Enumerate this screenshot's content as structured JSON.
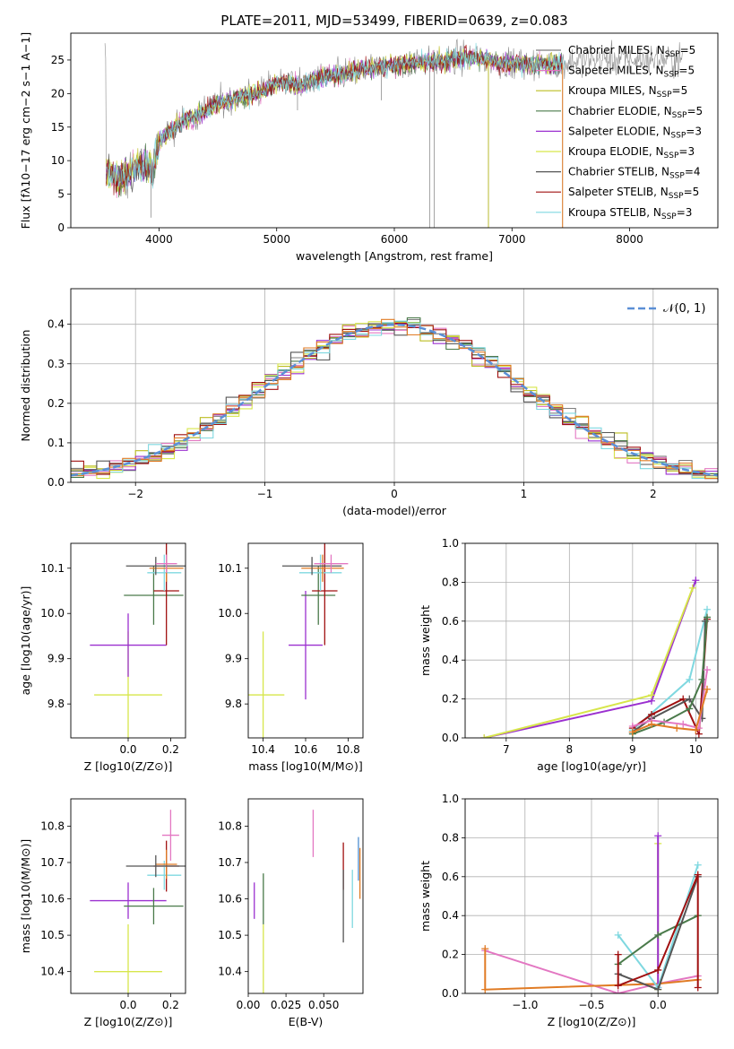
{
  "figure": {
    "title": "PLATE=2011, MJD=53499, FIBERID=0639, z=0.083",
    "colors": {
      "chabrier_miles": "#7f7f7f",
      "salpeter_miles": "#e377c2",
      "kroupa_miles": "#bcbd22",
      "chabrier_elodie": "#4a7a4a",
      "salpeter_elodie": "#9b30d0",
      "kroupa_elodie": "#d7e64b",
      "chabrier_stelib": "#555555",
      "salpeter_stelib": "#a01010",
      "kroupa_stelib": "#7fd8e0",
      "normal": "#5b8fd6",
      "extra_orange": "#e07b24",
      "extra_blue": "#4f8fd0",
      "grid": "#b0b0b0"
    }
  },
  "chart_data": [
    {
      "id": "spectrum",
      "type": "line",
      "title": "PLATE=2011, MJD=53499, FIBERID=0639, z=0.083",
      "xlabel": "wavelength [Angstrom, rest frame]",
      "ylabel": "Flux [fλ10−17 erg cm−2 s−1 A−1]",
      "xlim": [
        3250,
        8750
      ],
      "ylim": [
        0,
        29
      ],
      "xticks": [
        4000,
        5000,
        6000,
        7000,
        8000
      ],
      "yticks": [
        0,
        5,
        10,
        15,
        20,
        25
      ],
      "grid": false,
      "legend_position": "right",
      "series": [
        {
          "name": "Chabrier MILES, NSSP=5",
          "name_main": "Chabrier MILES, N",
          "name_sub": "SSP",
          "name_tail": "=5",
          "color_key": "chabrier_miles"
        },
        {
          "name": "Salpeter MILES, NSSP=5",
          "name_main": "Salpeter MILES, N",
          "name_sub": "SSP",
          "name_tail": "=5",
          "color_key": "salpeter_miles"
        },
        {
          "name": "Kroupa MILES, NSSP=5",
          "name_main": "Kroupa MILES, N",
          "name_sub": "SSP",
          "name_tail": "=5",
          "color_key": "kroupa_miles"
        },
        {
          "name": "Chabrier ELODIE, NSSP=5",
          "name_main": "Chabrier ELODIE, N",
          "name_sub": "SSP",
          "name_tail": "=5",
          "color_key": "chabrier_elodie"
        },
        {
          "name": "Salpeter ELODIE, NSSP=3",
          "name_main": "Salpeter ELODIE, N",
          "name_sub": "SSP",
          "name_tail": "=3",
          "color_key": "salpeter_elodie"
        },
        {
          "name": "Kroupa ELODIE, NSSP=3",
          "name_main": "Kroupa ELODIE, N",
          "name_sub": "SSP",
          "name_tail": "=3",
          "color_key": "kroupa_elodie"
        },
        {
          "name": "Chabrier STELIB, NSSP=4",
          "name_main": "Chabrier STELIB, N",
          "name_sub": "SSP",
          "name_tail": "=4",
          "color_key": "chabrier_stelib"
        },
        {
          "name": "Salpeter STELIB, NSSP=5",
          "name_main": "Salpeter STELIB, N",
          "name_sub": "SSP",
          "name_tail": "=5",
          "color_key": "salpeter_stelib"
        },
        {
          "name": "Kroupa STELIB, NSSP=3",
          "name_main": "Kroupa STELIB, N",
          "name_sub": "SSP",
          "name_tail": "=3",
          "color_key": "kroupa_stelib"
        }
      ],
      "continuum": {
        "x": [
          3550,
          3700,
          3800,
          3900,
          3950,
          4000,
          4100,
          4200,
          4300,
          4400,
          4500,
          4600,
          4700,
          4800,
          4900,
          5000,
          5100,
          5200,
          5300,
          5400,
          5500,
          5600,
          5700,
          5800,
          5900,
          6000,
          6100,
          6200,
          6300,
          6400,
          6500,
          6600,
          6700,
          6800,
          6900,
          7000,
          7100,
          7200,
          7300,
          7400,
          7600,
          7800,
          8000,
          8200,
          8400
        ],
        "y": [
          8.0,
          7.5,
          9.0,
          9.5,
          8.5,
          13.0,
          14.5,
          16.0,
          16.5,
          17.5,
          18.5,
          19.0,
          19.5,
          20.0,
          20.5,
          21.5,
          21.8,
          21.0,
          22.0,
          22.5,
          22.8,
          23.0,
          23.5,
          23.8,
          24.0,
          24.3,
          24.5,
          24.6,
          24.8,
          24.8,
          25.0,
          25.5,
          25.3,
          25.0,
          24.6,
          24.5,
          24.5,
          24.4,
          24.3,
          24.5,
          25.0,
          25.1,
          25.0,
          25.1,
          25.0
        ]
      },
      "dips": [
        {
          "x": 3933,
          "y": 1.5
        },
        {
          "x": 5177,
          "y": 17.5
        },
        {
          "x": 5890,
          "y": 19.0
        },
        {
          "x": 6300,
          "y": 0
        },
        {
          "x": 6340,
          "y": 0
        },
        {
          "x": 6800,
          "y": 0
        },
        {
          "x": 7430,
          "y": 0
        }
      ]
    },
    {
      "id": "residuals",
      "type": "step",
      "xlabel": "(data-model)/error",
      "ylabel": "Normed distribution",
      "xlim": [
        -2.5,
        2.5
      ],
      "ylim": [
        0,
        0.49
      ],
      "xticks": [
        -2,
        -1,
        0,
        1,
        2
      ],
      "xticklabels": [
        "−2",
        "−1",
        "0",
        "1",
        "2"
      ],
      "yticks": [
        0.0,
        0.1,
        0.2,
        0.3,
        0.4
      ],
      "yticklabels": [
        "0.0",
        "0.1",
        "0.2",
        "0.3",
        "0.4"
      ],
      "grid": true,
      "legend_position": "top-right",
      "normal_label": "𝒩(0, 1)",
      "bin_width": 0.1,
      "hist_colors": [
        "chabrier_miles",
        "salpeter_miles",
        "kroupa_miles",
        "chabrier_elodie",
        "salpeter_elodie",
        "kroupa_elodie",
        "chabrier_stelib",
        "salpeter_stelib",
        "kroupa_stelib",
        "extra_orange"
      ]
    },
    {
      "id": "age_vs_Z",
      "type": "errorbar",
      "xlabel": "Z [log10(Z/Z⊙)]",
      "ylabel": "age [log10(age/yr)]",
      "xlim": [
        -0.27,
        0.27
      ],
      "ylim": [
        9.725,
        10.155
      ],
      "xticks": [
        0.0,
        0.2
      ],
      "xticklabels": [
        "0.0",
        "0.2"
      ],
      "yticks": [
        9.8,
        9.9,
        10.0,
        10.1
      ],
      "yticklabels": [
        "9.8",
        "9.9",
        "10.0",
        "10.1"
      ],
      "grid": false,
      "points": [
        {
          "x": 0.0,
          "y": 9.82,
          "xerr": 0.16,
          "yerr": 0.14,
          "color_key": "kroupa_elodie"
        },
        {
          "x": 0.0,
          "y": 9.93,
          "xerr": 0.18,
          "yerr": 0.07,
          "color_key": "salpeter_elodie"
        },
        {
          "x": 0.12,
          "y": 10.04,
          "xerr": 0.14,
          "yerr": 0.065,
          "color_key": "chabrier_elodie"
        },
        {
          "x": 0.18,
          "y": 10.05,
          "xerr": 0.06,
          "yerr": 0.12,
          "color_key": "salpeter_stelib"
        },
        {
          "x": 0.17,
          "y": 10.09,
          "xerr": 0.08,
          "yerr": 0.04,
          "color_key": "kroupa_stelib"
        },
        {
          "x": 0.18,
          "y": 10.1,
          "xerr": 0.08,
          "yerr": 0.03,
          "color_key": "extra_orange"
        },
        {
          "x": 0.13,
          "y": 10.105,
          "xerr": 0.14,
          "yerr": 0.02,
          "color_key": "chabrier_stelib"
        },
        {
          "x": 0.18,
          "y": 10.11,
          "xerr": 0.05,
          "yerr": 0.02,
          "color_key": "salpeter_miles"
        }
      ]
    },
    {
      "id": "age_vs_mass",
      "type": "errorbar",
      "xlabel": "mass [log10(M/M⊙)]",
      "ylabel": "",
      "xlim": [
        10.33,
        10.87
      ],
      "ylim": [
        9.725,
        10.155
      ],
      "xticks": [
        10.4,
        10.6,
        10.8
      ],
      "xticklabels": [
        "10.4",
        "10.6",
        "10.8"
      ],
      "yticks": [
        9.8,
        9.9,
        10.0,
        10.1
      ],
      "yticklabels": [
        "9.8",
        "9.9",
        "10.0",
        "10.1"
      ],
      "grid": false,
      "points": [
        {
          "x": 10.4,
          "y": 9.82,
          "xerr": 0.1,
          "yerr": 0.14,
          "color_key": "kroupa_elodie"
        },
        {
          "x": 10.6,
          "y": 9.93,
          "xerr": 0.08,
          "yerr": 0.12,
          "color_key": "salpeter_elodie"
        },
        {
          "x": 10.66,
          "y": 10.04,
          "xerr": 0.08,
          "yerr": 0.065,
          "color_key": "chabrier_elodie"
        },
        {
          "x": 10.69,
          "y": 10.05,
          "xerr": 0.06,
          "yerr": 0.12,
          "color_key": "salpeter_stelib"
        },
        {
          "x": 10.67,
          "y": 10.09,
          "xerr": 0.1,
          "yerr": 0.04,
          "color_key": "kroupa_stelib"
        },
        {
          "x": 10.68,
          "y": 10.1,
          "xerr": 0.1,
          "yerr": 0.03,
          "color_key": "extra_orange"
        },
        {
          "x": 10.63,
          "y": 10.105,
          "xerr": 0.14,
          "yerr": 0.02,
          "color_key": "chabrier_stelib"
        },
        {
          "x": 10.72,
          "y": 10.11,
          "xerr": 0.08,
          "yerr": 0.02,
          "color_key": "salpeter_miles"
        }
      ]
    },
    {
      "id": "weight_vs_age",
      "type": "line",
      "xlabel": "age [log10(age/yr)]",
      "ylabel": "mass weight",
      "xlim": [
        6.35,
        10.35
      ],
      "ylim": [
        0,
        1.0
      ],
      "xticks": [
        7,
        8,
        9,
        10
      ],
      "xticklabels": [
        "7",
        "8",
        "9",
        "10"
      ],
      "yticks": [
        0.0,
        0.2,
        0.4,
        0.6,
        0.8,
        1.0
      ],
      "yticklabels": [
        "0.0",
        "0.2",
        "0.4",
        "0.6",
        "0.8",
        "1.0"
      ],
      "grid": true,
      "series": [
        {
          "color_key": "salpeter_elodie",
          "x": [
            6.65,
            9.3,
            10.0
          ],
          "y": [
            0.0,
            0.19,
            0.81
          ]
        },
        {
          "color_key": "kroupa_elodie",
          "x": [
            6.65,
            9.3,
            9.95
          ],
          "y": [
            0.0,
            0.22,
            0.77
          ]
        },
        {
          "color_key": "kroupa_stelib",
          "x": [
            9.0,
            9.9,
            10.18
          ],
          "y": [
            0.04,
            0.3,
            0.66
          ]
        },
        {
          "color_key": "salpeter_stelib",
          "x": [
            9.0,
            9.3,
            9.8,
            10.05,
            10.18
          ],
          "y": [
            0.05,
            0.12,
            0.2,
            0.02,
            0.61
          ]
        },
        {
          "color_key": "chabrier_stelib",
          "x": [
            9.0,
            9.3,
            9.9,
            10.1,
            10.15
          ],
          "y": [
            0.03,
            0.1,
            0.2,
            0.1,
            0.6
          ]
        },
        {
          "color_key": "chabrier_elodie",
          "x": [
            9.0,
            9.5,
            9.9,
            10.1,
            10.18
          ],
          "y": [
            0.02,
            0.08,
            0.15,
            0.3,
            0.62
          ]
        },
        {
          "color_key": "salpeter_miles",
          "x": [
            9.0,
            9.3,
            9.8,
            10.05,
            10.18
          ],
          "y": [
            0.06,
            0.09,
            0.07,
            0.05,
            0.35
          ]
        },
        {
          "color_key": "extra_orange",
          "x": [
            9.0,
            9.3,
            9.7,
            10.0,
            10.18
          ],
          "y": [
            0.03,
            0.07,
            0.05,
            0.04,
            0.25
          ]
        }
      ]
    },
    {
      "id": "mass_vs_Z",
      "type": "errorbar",
      "xlabel": "Z [log10(Z/Z⊙)]",
      "ylabel": "mass [log10(M/M⊙)]",
      "xlim": [
        -0.27,
        0.27
      ],
      "ylim": [
        10.34,
        10.875
      ],
      "xticks": [
        0.0,
        0.2
      ],
      "xticklabels": [
        "0.0",
        "0.2"
      ],
      "yticks": [
        10.4,
        10.5,
        10.6,
        10.7,
        10.8
      ],
      "yticklabels": [
        "10.4",
        "10.5",
        "10.6",
        "10.7",
        "10.8"
      ],
      "grid": false,
      "points": [
        {
          "x": 0.0,
          "y": 10.4,
          "xerr": 0.16,
          "yerr": 0.13,
          "color_key": "kroupa_elodie"
        },
        {
          "x": 0.0,
          "y": 10.595,
          "xerr": 0.18,
          "yerr": 0.05,
          "color_key": "salpeter_elodie"
        },
        {
          "x": 0.12,
          "y": 10.58,
          "xerr": 0.14,
          "yerr": 0.05,
          "color_key": "chabrier_elodie"
        },
        {
          "x": 0.18,
          "y": 10.69,
          "xerr": 0.06,
          "yerr": 0.07,
          "color_key": "salpeter_stelib"
        },
        {
          "x": 0.17,
          "y": 10.665,
          "xerr": 0.08,
          "yerr": 0.04,
          "color_key": "kroupa_stelib"
        },
        {
          "x": 0.18,
          "y": 10.695,
          "xerr": 0.05,
          "yerr": 0.04,
          "color_key": "extra_orange"
        },
        {
          "x": 0.13,
          "y": 10.69,
          "xerr": 0.14,
          "yerr": 0.03,
          "color_key": "chabrier_stelib"
        },
        {
          "x": 0.2,
          "y": 10.775,
          "xerr": 0.04,
          "yerr": 0.07,
          "color_key": "salpeter_miles"
        }
      ]
    },
    {
      "id": "mass_vs_ebv",
      "type": "errorbar",
      "xlabel": "E(B-V)",
      "ylabel": "",
      "xlim": [
        0.0,
        0.076
      ],
      "ylim": [
        10.34,
        10.875
      ],
      "xticks": [
        0.0,
        0.025,
        0.05
      ],
      "xticklabels": [
        "0.00",
        "0.025",
        "0.050"
      ],
      "yticks": [
        10.4,
        10.5,
        10.6,
        10.7,
        10.8
      ],
      "yticklabels": [
        "10.4",
        "10.5",
        "10.6",
        "10.7",
        "10.8"
      ],
      "grid": false,
      "points": [
        {
          "x": 0.01,
          "y": 10.4,
          "xerr": 0.0,
          "yerr": 0.13,
          "color_key": "kroupa_elodie"
        },
        {
          "x": 0.004,
          "y": 10.595,
          "xerr": 0.0,
          "yerr": 0.05,
          "color_key": "salpeter_elodie"
        },
        {
          "x": 0.01,
          "y": 10.6,
          "xerr": 0.0,
          "yerr": 0.07,
          "color_key": "chabrier_elodie"
        },
        {
          "x": 0.063,
          "y": 10.69,
          "xerr": 0.0,
          "yerr": 0.065,
          "color_key": "salpeter_stelib"
        },
        {
          "x": 0.069,
          "y": 10.6,
          "xerr": 0.0,
          "yerr": 0.08,
          "color_key": "kroupa_stelib"
        },
        {
          "x": 0.074,
          "y": 10.67,
          "xerr": 0.0,
          "yerr": 0.07,
          "color_key": "extra_orange"
        },
        {
          "x": 0.063,
          "y": 10.58,
          "xerr": 0.0,
          "yerr": 0.1,
          "color_key": "chabrier_stelib"
        },
        {
          "x": 0.043,
          "y": 10.78,
          "xerr": 0.0,
          "yerr": 0.065,
          "color_key": "salpeter_miles"
        },
        {
          "x": 0.073,
          "y": 10.71,
          "xerr": 0.0,
          "yerr": 0.06,
          "color_key": "extra_blue"
        }
      ]
    },
    {
      "id": "weight_vs_Z",
      "type": "line",
      "xlabel": "Z [log10(Z/Z⊙)]",
      "ylabel": "mass weight",
      "xlim": [
        -1.45,
        0.45
      ],
      "ylim": [
        0,
        1.0
      ],
      "xticks": [
        -1.0,
        -0.5,
        0.0
      ],
      "xticklabels": [
        "−1.0",
        "−0.5",
        "0.0"
      ],
      "yticks": [
        0.0,
        0.2,
        0.4,
        0.6,
        0.8,
        1.0
      ],
      "yticklabels": [
        "0.0",
        "0.2",
        "0.4",
        "0.6",
        "0.8",
        "1.0"
      ],
      "grid": true,
      "series": [
        {
          "color_key": "salpeter_miles",
          "x": [
            -1.3,
            -0.3,
            0.0,
            0.3
          ],
          "y": [
            0.22,
            0.0,
            0.05,
            0.09
          ]
        },
        {
          "color_key": "extra_orange",
          "x": [
            -1.3,
            -1.3,
            0.0,
            0.3
          ],
          "y": [
            0.23,
            0.02,
            0.05,
            0.07
          ]
        },
        {
          "color_key": "kroupa_elodie",
          "x": [
            0.0,
            0.0
          ],
          "y": [
            0.02,
            0.77
          ]
        },
        {
          "color_key": "salpeter_elodie",
          "x": [
            0.0,
            0.0
          ],
          "y": [
            0.03,
            0.81
          ]
        },
        {
          "color_key": "kroupa_stelib",
          "x": [
            -0.3,
            0.0,
            0.3
          ],
          "y": [
            0.3,
            0.03,
            0.66
          ]
        },
        {
          "color_key": "chabrier_elodie",
          "x": [
            -0.3,
            0.0,
            0.3
          ],
          "y": [
            0.15,
            0.3,
            0.4
          ]
        },
        {
          "color_key": "chabrier_stelib",
          "x": [
            -0.3,
            0.0,
            0.3
          ],
          "y": [
            0.1,
            0.02,
            0.6
          ]
        },
        {
          "color_key": "salpeter_stelib",
          "x": [
            -0.3,
            -0.3,
            0.0,
            0.3,
            0.3
          ],
          "y": [
            0.2,
            0.04,
            0.12,
            0.61,
            0.03
          ]
        }
      ]
    }
  ]
}
